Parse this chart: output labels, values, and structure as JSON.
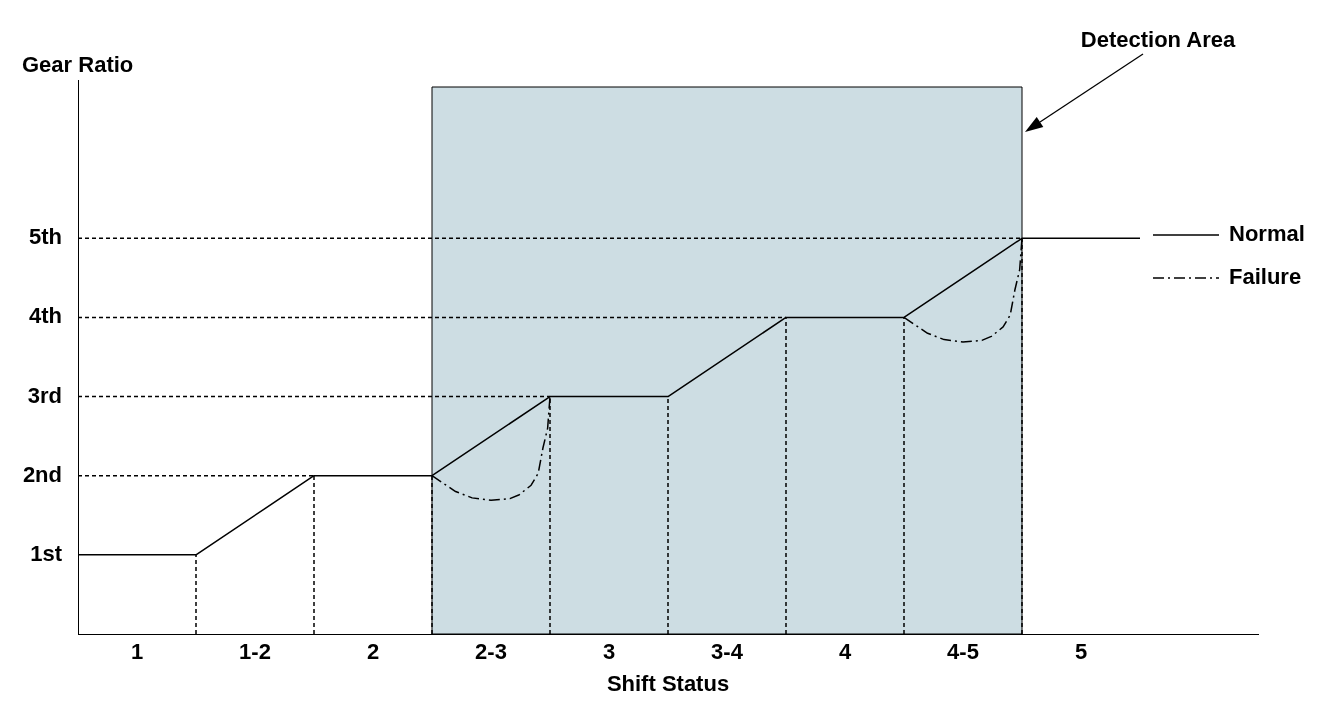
{
  "chart_data": {
    "type": "line",
    "xlabel": "Shift Status",
    "ylabel": "Gear Ratio",
    "xlim": [
      0.75,
      5.75
    ],
    "xticks": [
      1,
      {
        "value": 1.5,
        "label": "1-2"
      },
      2,
      {
        "value": 2.5,
        "label": "2-3"
      },
      3,
      {
        "value": 3.5,
        "label": "3-4"
      },
      4,
      {
        "value": 4.5,
        "label": "4-5"
      },
      5
    ],
    "ylim": [
      0,
      7
    ],
    "yticks": [
      {
        "value": 1,
        "label": "1st"
      },
      {
        "value": 2,
        "label": "2nd"
      },
      {
        "value": 3,
        "label": "3rd"
      },
      {
        "value": 4,
        "label": "4th"
      },
      {
        "value": 5,
        "label": "5th"
      }
    ],
    "legend": "right",
    "bands": [
      {
        "axis": "x",
        "from": 2.25,
        "to": 4.75,
        "color": "#cddde3"
      }
    ],
    "annotations": [
      "Detection Area"
    ],
    "series": [
      {
        "name": "Normal",
        "color": "#000000",
        "line_style": "solid",
        "x": [
          0.75,
          1.25,
          1.75,
          2.25,
          2.75,
          3.25,
          3.75,
          4.25,
          4.75,
          5.25
        ],
        "values": [
          1,
          1,
          2,
          2,
          3,
          3,
          4,
          4,
          5,
          5
        ]
      },
      {
        "name": "Failure",
        "color": "#000000",
        "line_style": "dashed",
        "x": [
          2.25,
          2.3,
          2.35,
          2.42,
          2.5,
          2.58,
          2.62,
          2.67,
          2.7,
          2.72,
          2.74,
          2.75,
          null,
          4.25,
          4.3,
          4.35,
          4.42,
          4.5,
          4.58,
          4.62,
          4.67,
          4.7,
          4.72,
          4.74,
          4.75
        ],
        "values": [
          2,
          1.9,
          1.8,
          1.72,
          1.69,
          1.71,
          1.76,
          1.88,
          2.03,
          2.35,
          2.6,
          3,
          null,
          4,
          3.9,
          3.8,
          3.72,
          3.69,
          3.71,
          3.76,
          3.88,
          4.03,
          4.35,
          4.6,
          5
        ]
      },
      {
        "color": "#000000",
        "line_style": "dotted",
        "x": [
          1.25,
          1.25
        ],
        "values": [
          0,
          1
        ]
      },
      {
        "color": "#000000",
        "line_style": "dotted",
        "x": [
          1.75,
          1.75
        ],
        "values": [
          0,
          2
        ]
      },
      {
        "color": "#000000",
        "line_style": "dotted",
        "x": [
          2.25,
          2.25
        ],
        "values": [
          0,
          2
        ]
      },
      {
        "color": "#000000",
        "line_style": "dotted",
        "x": [
          2.75,
          2.75
        ],
        "values": [
          0,
          3
        ]
      },
      {
        "color": "#000000",
        "line_style": "dotted",
        "x": [
          3.25,
          3.25
        ],
        "values": [
          0,
          3
        ]
      },
      {
        "color": "#000000",
        "line_style": "dotted",
        "x": [
          3.75,
          3.75
        ],
        "values": [
          0,
          4
        ]
      },
      {
        "color": "#000000",
        "line_style": "dotted",
        "x": [
          4.25,
          4.25
        ],
        "values": [
          0,
          4
        ]
      },
      {
        "color": "#000000",
        "line_style": "dotted",
        "x": [
          4.75,
          4.75
        ],
        "values": [
          0,
          5
        ]
      },
      {
        "color": "#000000",
        "line_style": "dotted",
        "x": [
          0.75,
          1.75
        ],
        "values": [
          2,
          2
        ]
      },
      {
        "color": "#000000",
        "line_style": "dotted",
        "x": [
          0.75,
          2.75
        ],
        "values": [
          3,
          3
        ]
      },
      {
        "color": "#000000",
        "line_style": "dotted",
        "x": [
          0.75,
          3.75
        ],
        "values": [
          4,
          4
        ]
      },
      {
        "color": "#000000",
        "line_style": "dotted",
        "x": [
          0.75,
          4.75
        ],
        "values": [
          5,
          5
        ]
      }
    ]
  }
}
